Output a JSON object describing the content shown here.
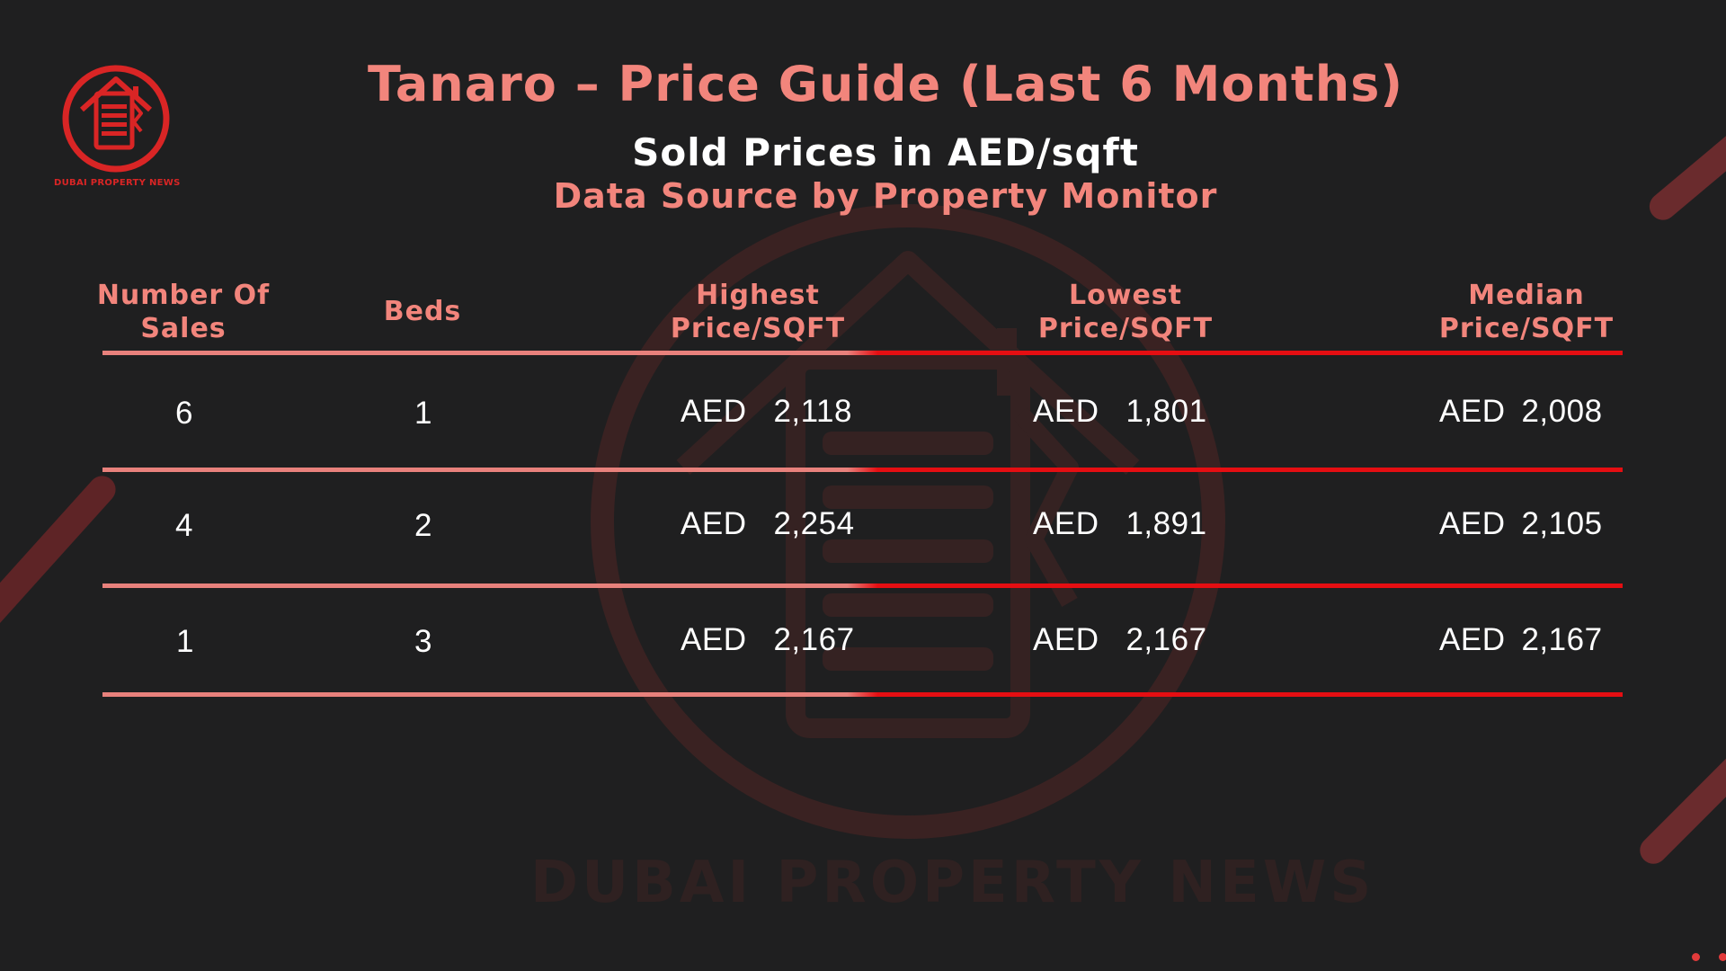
{
  "logo": {
    "text": "DUBAI PROPERTY NEWS"
  },
  "watermark": {
    "text": "DUBAI PROPERTY NEWS"
  },
  "heading": {
    "title": "Tanaro – Price Guide (Last 6 Months)",
    "subtitle": "Sold Prices in AED/sqft",
    "source": "Data Source by Property Monitor"
  },
  "table": {
    "columns": [
      "Number Of\nSales",
      "Beds",
      "Highest\nPrice/SQFT",
      "Lowest\nPrice/SQFT",
      "Median\nPrice/SQFT"
    ],
    "currency": "AED",
    "rows": [
      {
        "sales": "6",
        "beds": "1",
        "highest": "2,118",
        "lowest": "1,801",
        "median": "2,008"
      },
      {
        "sales": "4",
        "beds": "2",
        "highest": "2,254",
        "lowest": "1,891",
        "median": "2,105"
      },
      {
        "sales": "1",
        "beds": "3",
        "highest": "2,167",
        "lowest": "2,167",
        "median": "2,167"
      }
    ]
  },
  "colors": {
    "background": "#1f1f20",
    "accent_pink": "#f2857c",
    "accent_red": "#e50e12",
    "text": "#ffffff"
  },
  "icons": [
    "house-document-logo-icon",
    "house-document-watermark-icon"
  ]
}
